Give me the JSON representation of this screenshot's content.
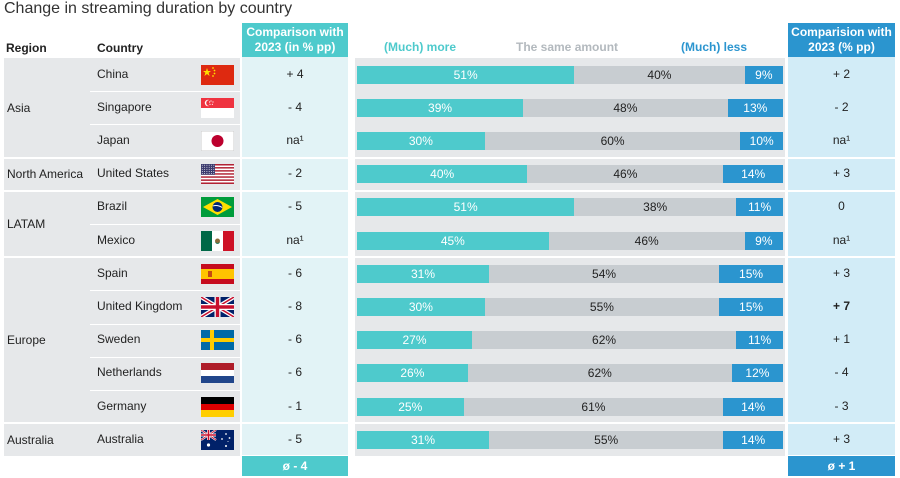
{
  "title": "Change in streaming duration by country",
  "headers": {
    "region": "Region",
    "country": "Country",
    "comparison_left": "Comparison with 2023 (in % pp)",
    "comparison_right": "Comparision with 2023 (% pp)"
  },
  "legend": {
    "more": "(Much) more",
    "same": "The same amount",
    "less": "(Much) less"
  },
  "colors": {
    "more": "#4ecacc",
    "same": "#c8cdd1",
    "less": "#2b95cf"
  },
  "footer": {
    "left": "ø - 4",
    "right": "ø + 1"
  },
  "regions": [
    {
      "name": "Asia",
      "rows": 3
    },
    {
      "name": "North America",
      "rows": 1
    },
    {
      "name": "LATAM",
      "rows": 2
    },
    {
      "name": "Europe",
      "rows": 5
    },
    {
      "name": "Australia",
      "rows": 1
    }
  ],
  "chart_data": {
    "type": "bar",
    "stacked": true,
    "normalized": true,
    "categories": [
      "China",
      "Singapore",
      "Japan",
      "United States",
      "Brazil",
      "Mexico",
      "Spain",
      "United Kingdom",
      "Sweden",
      "Netherlands",
      "Germany",
      "Australia"
    ],
    "series": [
      {
        "name": "(Much) more",
        "values": [
          51,
          39,
          30,
          40,
          51,
          45,
          31,
          30,
          27,
          26,
          25,
          31
        ]
      },
      {
        "name": "The same amount",
        "values": [
          40,
          48,
          60,
          46,
          38,
          46,
          54,
          55,
          62,
          62,
          61,
          55
        ]
      },
      {
        "name": "(Much) less",
        "values": [
          9,
          13,
          10,
          14,
          11,
          9,
          15,
          15,
          11,
          12,
          14,
          14
        ]
      }
    ]
  },
  "rows": [
    {
      "country": "China",
      "flag": "flag-china",
      "more_change": "+ 4",
      "less_change": "+ 2",
      "labels": [
        "51%",
        "40%",
        "9%"
      ]
    },
    {
      "country": "Singapore",
      "flag": "flag-singapore",
      "more_change": "- 4",
      "less_change": "- 2",
      "labels": [
        "39%",
        "48%",
        "13%"
      ]
    },
    {
      "country": "Japan",
      "flag": "flag-japan",
      "more_change": "na¹",
      "less_change": "na¹",
      "labels": [
        "30%",
        "60%",
        "10%"
      ]
    },
    {
      "country": "United States",
      "flag": "flag-usa",
      "more_change": "- 2",
      "less_change": "+ 3",
      "labels": [
        "40%",
        "46%",
        "14%"
      ]
    },
    {
      "country": "Brazil",
      "flag": "flag-brazil",
      "more_change": "- 5",
      "less_change": "0",
      "labels": [
        "51%",
        "38%",
        "11%"
      ]
    },
    {
      "country": "Mexico",
      "flag": "flag-mexico",
      "more_change": "na¹",
      "less_change": "na¹",
      "labels": [
        "45%",
        "46%",
        "9%"
      ]
    },
    {
      "country": "Spain",
      "flag": "flag-spain",
      "more_change": "- 6",
      "less_change": "+ 3",
      "labels": [
        "31%",
        "54%",
        "15%"
      ]
    },
    {
      "country": "United Kingdom",
      "flag": "flag-uk",
      "more_change": "- 8",
      "less_change": "+ 7",
      "less_bold": true,
      "labels": [
        "30%",
        "55%",
        "15%"
      ]
    },
    {
      "country": "Sweden",
      "flag": "flag-sweden",
      "more_change": "- 6",
      "less_change": "+ 1",
      "labels": [
        "27%",
        "62%",
        "11%"
      ]
    },
    {
      "country": "Netherlands",
      "flag": "flag-netherlands",
      "more_change": "- 6",
      "less_change": "- 4",
      "labels": [
        "26%",
        "62%",
        "12%"
      ]
    },
    {
      "country": "Germany",
      "flag": "flag-germany",
      "more_change": "- 1",
      "less_change": "- 3",
      "labels": [
        "25%",
        "61%",
        "14%"
      ]
    },
    {
      "country": "Australia",
      "flag": "flag-australia",
      "more_change": "- 5",
      "less_change": "+ 3",
      "labels": [
        "31%",
        "55%",
        "14%"
      ]
    }
  ]
}
